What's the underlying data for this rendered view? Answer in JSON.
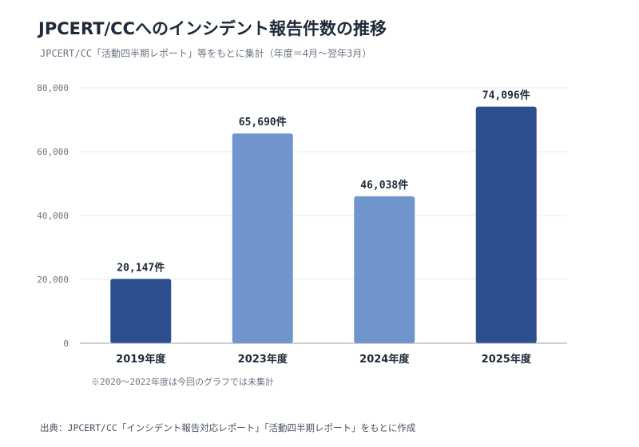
{
  "chart_data": {
    "type": "bar",
    "title": "JPCERT/CCへのインシデント報告件数の推移",
    "subtitle": "JPCERT/CC「活動四半期レポート」等をもとに集計（年度＝4月〜翌年3月）",
    "categories": [
      "2019年度",
      "2023年度",
      "2024年度",
      "2025年度"
    ],
    "values": [
      20147,
      65690,
      46038,
      74096
    ],
    "data_labels": [
      "20,147件",
      "65,690件",
      "46,038件",
      "74,096件"
    ],
    "ylim": [
      0,
      80000
    ],
    "yticks": [
      0,
      20000,
      40000,
      60000,
      80000
    ],
    "ytick_labels": [
      "0",
      "20,000",
      "40,000",
      "60,000",
      "80,000"
    ],
    "grid": true,
    "xlabel": "",
    "ylabel": "",
    "bar_colors": [
      "#2d4f8e",
      "#6f95cc",
      "#6f95cc",
      "#2d4f8e"
    ]
  },
  "note": "※2020〜2022年度は今回のグラフでは未集計",
  "source": "出典：JPCERT/CC「インシデント報告対応レポート」「活動四半期レポート」をもとに作成"
}
